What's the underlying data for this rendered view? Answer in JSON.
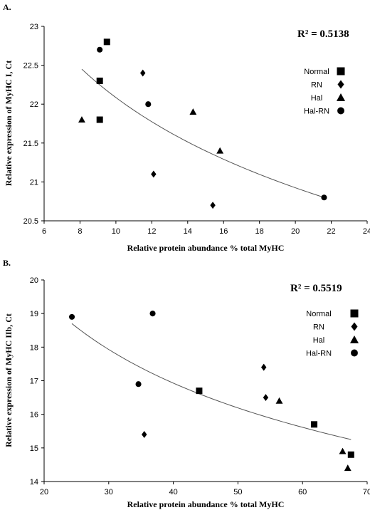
{
  "chart_data": [
    {
      "type": "scatter",
      "panel_label": "A.",
      "xlabel": "Relative protein abundance % total MyHC",
      "ylabel": "Relative expression of MyHC I, Ct",
      "xlim": [
        6,
        24
      ],
      "ylim": [
        20.5,
        23
      ],
      "xticks": [
        "6",
        "8",
        "10",
        "12",
        "14",
        "16",
        "18",
        "20",
        "22",
        "24"
      ],
      "yticks": [
        "20.5",
        "21",
        "21.5",
        "22",
        "22.5",
        "23"
      ],
      "annotation": "R² = 0.5138",
      "legend_position": "right",
      "series": [
        {
          "name": "Normal",
          "marker": "square",
          "points": [
            [
              9.5,
              22.8
            ],
            [
              9.1,
              22.3
            ],
            [
              9.1,
              21.8
            ]
          ]
        },
        {
          "name": "RN",
          "marker": "diamond",
          "points": [
            [
              11.5,
              22.4
            ],
            [
              12.1,
              21.1
            ],
            [
              15.4,
              20.7
            ]
          ]
        },
        {
          "name": "Hal",
          "marker": "triangle",
          "points": [
            [
              8.1,
              21.8
            ],
            [
              14.3,
              21.9
            ],
            [
              15.8,
              21.4
            ]
          ]
        },
        {
          "name": "Hal-RN",
          "marker": "circle",
          "points": [
            [
              9.1,
              22.7
            ],
            [
              11.8,
              22.0
            ],
            [
              21.6,
              20.8
            ]
          ]
        }
      ],
      "trendline": {
        "type": "power",
        "x_range": [
          8.1,
          21.6
        ],
        "y_range": [
          22.45,
          20.8
        ]
      }
    },
    {
      "type": "scatter",
      "panel_label": "B.",
      "xlabel": "Relative protein abundance % total MyHC",
      "ylabel": "Relative expression of MyHC IIb, Ct",
      "xlim": [
        20,
        70
      ],
      "ylim": [
        14,
        20
      ],
      "xticks": [
        "20",
        "30",
        "40",
        "50",
        "60",
        "70"
      ],
      "yticks": [
        "14",
        "15",
        "16",
        "17",
        "18",
        "19",
        "20"
      ],
      "annotation": "R² = 0.5519",
      "legend_position": "right",
      "series": [
        {
          "name": "Normal",
          "marker": "square",
          "points": [
            [
              44.0,
              16.7
            ],
            [
              61.8,
              15.7
            ],
            [
              67.5,
              14.8
            ]
          ]
        },
        {
          "name": "RN",
          "marker": "diamond",
          "points": [
            [
              35.5,
              15.4
            ],
            [
              54.0,
              17.4
            ],
            [
              54.3,
              16.5
            ]
          ]
        },
        {
          "name": "Hal",
          "marker": "triangle",
          "points": [
            [
              56.4,
              16.4
            ],
            [
              66.2,
              14.9
            ],
            [
              67.0,
              14.4
            ]
          ]
        },
        {
          "name": "Hal-RN",
          "marker": "circle",
          "points": [
            [
              24.3,
              18.9
            ],
            [
              34.6,
              16.9
            ],
            [
              36.8,
              19.0
            ]
          ]
        }
      ],
      "trendline": {
        "type": "power",
        "x_range": [
          24.3,
          67.5
        ],
        "y_range": [
          18.7,
          15.25
        ]
      }
    }
  ]
}
